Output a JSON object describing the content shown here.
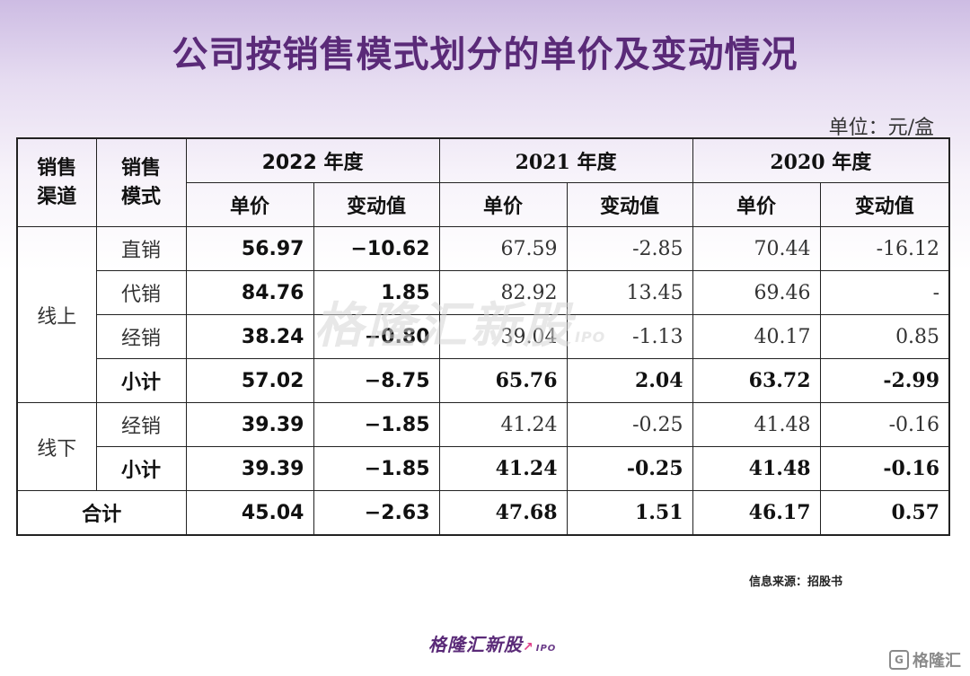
{
  "title": "公司按销售模式划分的单价及变动情况",
  "unit": "单位：元/盒",
  "table": {
    "headers": {
      "channel": "销售渠道",
      "channel_line1": "销售",
      "channel_line2": "渠道",
      "mode_line1": "销售",
      "mode_line2": "模式",
      "years": [
        "2022 年度",
        "2021 年度",
        "2020 年度"
      ],
      "price": "单价",
      "change": "变动值"
    },
    "groups": {
      "online": "线上",
      "offline": "线下",
      "total": "合计"
    },
    "rows": [
      {
        "mode": "直销",
        "v": [
          "56.97",
          "−10.62",
          "67.59",
          "-2.85",
          "70.44",
          "-16.12"
        ]
      },
      {
        "mode": "代销",
        "v": [
          "84.76",
          "1.85",
          "82.92",
          "13.45",
          "69.46",
          "-"
        ]
      },
      {
        "mode": "经销",
        "v": [
          "38.24",
          "−0.80",
          "39.04",
          "-1.13",
          "40.17",
          "0.85"
        ]
      },
      {
        "mode": "小计",
        "v": [
          "57.02",
          "−8.75",
          "65.76",
          "2.04",
          "63.72",
          "-2.99"
        ]
      },
      {
        "mode": "经销",
        "v": [
          "39.39",
          "−1.85",
          "41.24",
          "-0.25",
          "41.48",
          "-0.16"
        ]
      },
      {
        "mode": "小计",
        "v": [
          "39.39",
          "−1.85",
          "41.24",
          "-0.25",
          "41.48",
          "-0.16"
        ]
      },
      {
        "v": [
          "45.04",
          "−2.63",
          "47.68",
          "1.51",
          "46.17",
          "0.57"
        ]
      }
    ]
  },
  "watermark": {
    "text": "格隆汇新股",
    "sub": "IPO"
  },
  "source": "信息来源：招股书",
  "logo": {
    "text": "格隆汇新股",
    "sub": "IPO"
  },
  "corner_logo": "格隆汇"
}
